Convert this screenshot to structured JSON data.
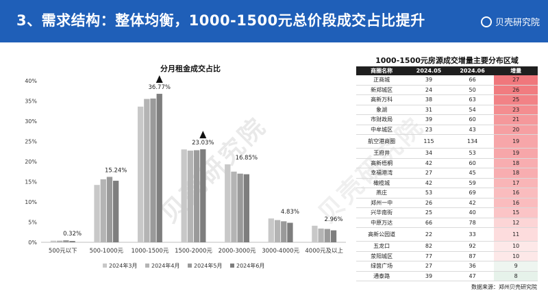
{
  "header": {
    "title": "3、需求结构：整体均衡，1000-1500元总价段成交占比提升",
    "brand": "贝壳研究院",
    "bg_color": "#1f5fb8"
  },
  "watermark": "贝壳研究院",
  "chart_data": {
    "type": "bar",
    "title": "分月租金成交占比",
    "categories": [
      "500元以下",
      "500-1000元",
      "1000-1500元",
      "1500-2000元",
      "2000-3000元",
      "3000-4000元",
      "4000元及以上"
    ],
    "series": [
      {
        "name": "2024年3月",
        "values": [
          0.4,
          14.2,
          33.6,
          23.0,
          19.3,
          5.9,
          4.1
        ],
        "color": "#c8c8c8"
      },
      {
        "name": "2024年4月",
        "values": [
          0.4,
          15.6,
          35.5,
          22.7,
          17.5,
          5.5,
          3.4
        ],
        "color": "#b4b4b4"
      },
      {
        "name": "2024年5月",
        "values": [
          0.5,
          16.2,
          35.6,
          22.8,
          17.0,
          5.2,
          3.3
        ],
        "color": "#9a9a9a"
      },
      {
        "name": "2024年6月",
        "values": [
          0.32,
          15.24,
          36.77,
          23.03,
          16.85,
          4.83,
          2.96
        ],
        "color": "#7e7e7e"
      }
    ],
    "data_labels": [
      "0.32%",
      "15.24%",
      "36.77%",
      "23.03%",
      "16.85%",
      "4.83%",
      "2.96%"
    ],
    "highlight_categories": [
      2,
      3
    ],
    "yticks": [
      "0%",
      "5%",
      "10%",
      "15%",
      "20%",
      "25%",
      "30%",
      "35%",
      "40%"
    ],
    "ylim": [
      0,
      40
    ],
    "legend_position": "bottom",
    "grid": false
  },
  "table": {
    "title": "1000-1500元房源成交增量主要分布区域",
    "headers": [
      "商圈名称",
      "2024.05",
      "2024.06",
      "增量"
    ],
    "rows": [
      [
        "正商城",
        "39",
        "66",
        "27"
      ],
      [
        "新郑城区",
        "24",
        "50",
        "26"
      ],
      [
        "高新万科",
        "38",
        "63",
        "25"
      ],
      [
        "象湖",
        "31",
        "54",
        "23"
      ],
      [
        "市财政局",
        "39",
        "60",
        "21"
      ],
      [
        "中牟城区",
        "23",
        "43",
        "20"
      ],
      [
        "航空港商圈",
        "115",
        "134",
        "19"
      ],
      [
        "王府井",
        "34",
        "53",
        "19"
      ],
      [
        "高新梧桐",
        "42",
        "60",
        "18"
      ],
      [
        "幸福港湾",
        "27",
        "45",
        "18"
      ],
      [
        "橄榄城",
        "42",
        "59",
        "17"
      ],
      [
        "燕庄",
        "53",
        "69",
        "16"
      ],
      [
        "郑州一中",
        "26",
        "42",
        "16"
      ],
      [
        "兴华南街",
        "25",
        "40",
        "15"
      ],
      [
        "中原万达",
        "66",
        "78",
        "12"
      ],
      [
        "高新公园道",
        "22",
        "33",
        "11"
      ],
      [
        "五龙口",
        "82",
        "92",
        "10"
      ],
      [
        "荥阳城区",
        "77",
        "87",
        "10"
      ],
      [
        "绿茵广场",
        "27",
        "36",
        "9"
      ],
      [
        "通泰路",
        "39",
        "47",
        "8"
      ]
    ],
    "heat_colors": [
      "#f0777c",
      "#f17c80",
      "#f28286",
      "#f48d90",
      "#f5989b",
      "#f69fa2",
      "#f7a6a9",
      "#f7a6a9",
      "#f8adb0",
      "#f8adb0",
      "#f9b5b7",
      "#fabcbe",
      "#fabcbe",
      "#fbc4c6",
      "#fcd5d6",
      "#fddcdd",
      "#fde8e8",
      "#fde8e8",
      "#eef5f0",
      "#e6f2ea"
    ]
  },
  "source": "数据来源：郑州贝壳研究院"
}
